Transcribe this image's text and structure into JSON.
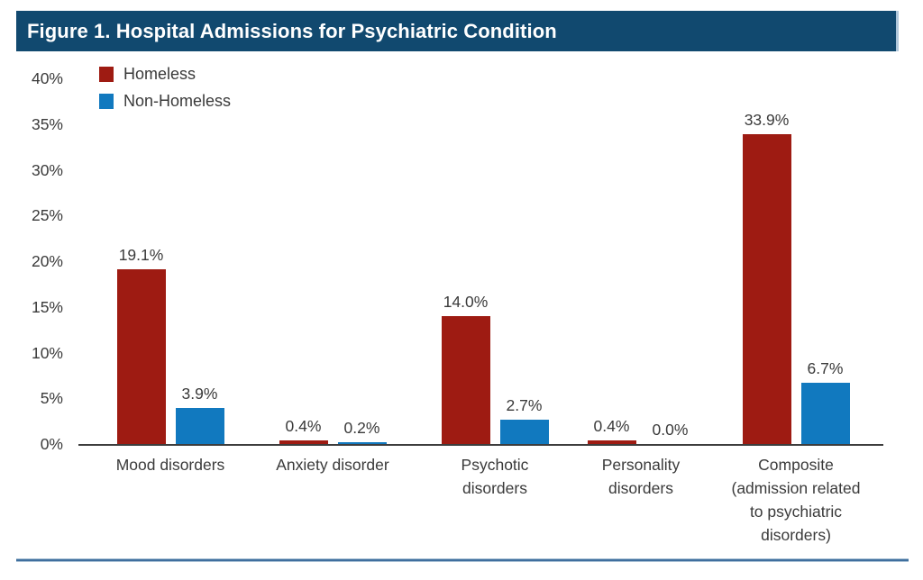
{
  "title_bar": {
    "title": "Figure 1. Hospital Admissions for Psychiatric Condition"
  },
  "chart_data": {
    "type": "bar",
    "title": "Figure 1. Hospital Admissions for Psychiatric Condition",
    "categories": [
      "Mood disorders",
      "Anxiety disorder",
      "Psychotic disorders",
      "Personality disorders",
      "Composite (admission related to psychiatric disorders)"
    ],
    "category_label_lines": [
      [
        "Mood disorders"
      ],
      [
        "Anxiety disorder"
      ],
      [
        "Psychotic",
        "disorders"
      ],
      [
        "Personality",
        "disorders"
      ],
      [
        "Composite",
        "(admission related",
        "to psychiatric",
        "disorders)"
      ]
    ],
    "category_slugs": [
      "mood-disorders",
      "anxiety-disorder",
      "psychotic-disorders",
      "personality-disorders",
      "composite"
    ],
    "series": [
      {
        "name": "Homeless",
        "color": "#9E1B12",
        "values": [
          19.1,
          0.4,
          14.0,
          0.4,
          33.9
        ],
        "labels": [
          "19.1%",
          "0.4%",
          "14.0%",
          "0.4%",
          "33.9%"
        ]
      },
      {
        "name": "Non-Homeless",
        "color": "#1179BF",
        "values": [
          3.9,
          0.2,
          2.7,
          0.0,
          6.7
        ],
        "labels": [
          "3.9%",
          "0.2%",
          "2.7%",
          "0.0%",
          "6.7%"
        ]
      }
    ],
    "y_ticks": [
      "0%",
      "5%",
      "10%",
      "15%",
      "20%",
      "25%",
      "30%",
      "35%",
      "40%"
    ],
    "y_tick_values": [
      0,
      5,
      10,
      15,
      20,
      25,
      30,
      35,
      40
    ],
    "ylim": [
      0,
      40
    ],
    "xlabel": "",
    "ylabel": "",
    "grid": false,
    "legend_position": "top-left"
  },
  "colors": {
    "title_bar_bg": "#11496F",
    "title_bar_text": "#FFFFFF",
    "homeless_bar": "#9E1B12",
    "non_homeless_bar": "#1179BF",
    "axis_line": "#3D3D3D",
    "label_text": "#3A3A3A",
    "bottom_rule": "#3F6F9E"
  }
}
